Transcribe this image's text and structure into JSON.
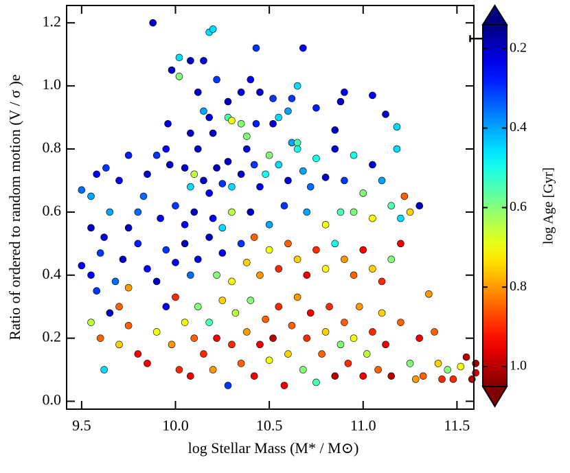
{
  "chart_data": {
    "type": "scatter",
    "xlabel": "log Stellar Mass (M* / M⊙)",
    "ylabel": "Ratio of ordered to random motion (V / σ )e",
    "colorbar_label": "log Age [Gyr]",
    "xlim": [
      9.42,
      11.59
    ],
    "ylim": [
      -0.025,
      1.255
    ],
    "clim": [
      0.14,
      1.05
    ],
    "xticks": [
      9.5,
      {
        "value": 10,
        "label": "10.0"
      },
      10.5,
      {
        "value": 11,
        "label": "11.0"
      },
      11.5
    ],
    "yticks": [
      {
        "value": 0,
        "label": "0.0"
      },
      0.2,
      0.4,
      0.6,
      0.8,
      {
        "value": 1,
        "label": "1.0"
      },
      1.2
    ],
    "cticks": [
      0.2,
      0.4,
      0.6,
      0.8,
      {
        "value": 1,
        "label": "1.0"
      }
    ],
    "colormap": "jet",
    "error_bar": {
      "x": 11.65,
      "y": 1.15,
      "xerr": 0.08,
      "yerr": 0.01
    },
    "x": [
      9.88,
      10.18,
      10.2,
      10.43,
      10.68,
      10.08,
      10.02,
      9.98,
      10.15,
      10.22,
      10.4,
      10.45,
      10.35,
      10.52,
      10.12,
      10.02,
      10.28,
      10.62,
      10.65,
      10.9,
      11.05,
      10.15,
      10.28,
      10.18,
      10.6,
      10.88,
      10.75,
      11.12,
      10.3,
      10.35,
      10.43,
      10.52,
      10.55,
      10.2,
      9.96,
      10.08,
      10.85,
      11.18,
      10.62,
      10.65,
      10.38,
      9.5,
      9.58,
      9.63,
      9.55,
      9.7,
      9.75,
      9.85,
      9.83,
      9.9,
      9.95,
      9.97,
      10.05,
      10.08,
      10.1,
      10.12,
      10.15,
      10.18,
      10.22,
      10.25,
      10.28,
      10.3,
      10.35,
      10.38,
      10.42,
      10.45,
      10.48,
      10.5,
      10.55,
      10.6,
      10.65,
      10.68,
      10.72,
      10.75,
      10.8,
      10.85,
      10.9,
      10.95,
      11.0,
      11.05,
      11.1,
      11.18,
      11.22,
      11.15,
      11.25,
      11.3,
      11.2,
      11.05,
      10.95,
      10.88,
      10.7,
      10.58,
      10.4,
      10.3,
      10.2,
      10.1,
      10.0,
      9.92,
      9.8,
      9.65,
      9.55,
      9.75,
      10.05,
      10.25,
      10.5,
      10.8,
      9.5,
      9.55,
      9.6,
      9.62,
      9.68,
      9.72,
      9.8,
      9.85,
      9.9,
      9.95,
      10.0,
      10.05,
      10.08,
      10.12,
      10.18,
      10.22,
      10.25,
      10.3,
      10.35,
      10.38,
      10.42,
      10.45,
      10.5,
      10.55,
      10.6,
      10.65,
      10.7,
      10.75,
      10.8,
      10.85,
      10.9,
      10.95,
      11.0,
      11.05,
      11.1,
      11.2,
      11.15,
      9.58,
      9.75,
      9.55,
      9.6,
      9.62,
      9.65,
      9.7,
      9.75,
      9.8,
      9.85,
      9.9,
      9.95,
      9.98,
      10.02,
      10.05,
      10.08,
      10.1,
      10.12,
      10.15,
      10.18,
      10.2,
      10.22,
      10.25,
      10.28,
      10.3,
      10.32,
      10.35,
      10.38,
      10.4,
      10.42,
      10.45,
      10.48,
      10.5,
      10.52,
      10.55,
      10.58,
      10.6,
      10.62,
      10.65,
      10.68,
      10.7,
      10.72,
      10.75,
      10.78,
      10.8,
      10.82,
      10.85,
      10.88,
      10.9,
      10.92,
      10.95,
      10.98,
      11.0,
      11.02,
      11.05,
      11.08,
      11.1,
      11.12,
      11.15,
      11.2,
      11.25,
      11.28,
      11.3,
      11.35,
      11.38,
      11.4,
      11.45,
      11.48,
      11.52,
      11.55,
      11.6,
      11.6,
      11.58,
      11.42,
      11.32,
      9.7,
      10.0
    ],
    "values": [
      1.2,
      1.17,
      1.18,
      1.12,
      1.12,
      1.08,
      1.09,
      1.05,
      1.08,
      1.02,
      1.02,
      0.98,
      0.98,
      0.96,
      0.98,
      1.03,
      0.95,
      0.96,
      1.0,
      0.98,
      0.97,
      0.92,
      0.9,
      0.9,
      0.92,
      0.95,
      0.93,
      0.91,
      0.89,
      0.88,
      0.88,
      0.88,
      0.9,
      0.85,
      0.88,
      0.85,
      0.86,
      0.87,
      0.82,
      0.82,
      0.84,
      0.67,
      0.72,
      0.74,
      0.65,
      0.7,
      0.78,
      0.72,
      0.65,
      0.78,
      0.8,
      0.75,
      0.74,
      0.68,
      0.72,
      0.8,
      0.7,
      0.66,
      0.74,
      0.69,
      0.76,
      0.68,
      0.72,
      0.8,
      0.75,
      0.68,
      0.72,
      0.78,
      0.75,
      0.7,
      0.8,
      0.73,
      0.68,
      0.77,
      0.71,
      0.8,
      0.7,
      0.78,
      0.66,
      0.75,
      0.7,
      0.8,
      0.65,
      0.62,
      0.6,
      0.62,
      0.58,
      0.58,
      0.6,
      0.6,
      0.6,
      0.62,
      0.6,
      0.6,
      0.58,
      0.6,
      0.62,
      0.58,
      0.6,
      0.6,
      0.55,
      0.55,
      0.56,
      0.55,
      0.56,
      0.56,
      0.43,
      0.4,
      0.47,
      0.52,
      0.38,
      0.45,
      0.5,
      0.42,
      0.38,
      0.48,
      0.44,
      0.5,
      0.4,
      0.45,
      0.52,
      0.4,
      0.47,
      0.38,
      0.5,
      0.44,
      0.52,
      0.4,
      0.48,
      0.42,
      0.5,
      0.45,
      0.4,
      0.48,
      0.42,
      0.5,
      0.45,
      0.4,
      0.48,
      0.42,
      0.38,
      0.5,
      0.45,
      0.35,
      0.36,
      0.25,
      0.2,
      0.1,
      0.28,
      0.18,
      0.24,
      0.15,
      0.12,
      0.22,
      0.3,
      0.18,
      0.1,
      0.25,
      0.08,
      0.2,
      0.3,
      0.15,
      0.25,
      0.1,
      0.2,
      0.32,
      0.05,
      0.18,
      0.28,
      0.12,
      0.22,
      0.32,
      0.08,
      0.18,
      0.26,
      0.13,
      0.2,
      0.3,
      0.05,
      0.15,
      0.24,
      0.33,
      0.1,
      0.2,
      0.28,
      0.06,
      0.15,
      0.22,
      0.3,
      0.08,
      0.18,
      0.25,
      0.12,
      0.2,
      0.3,
      0.08,
      0.15,
      0.22,
      0.1,
      0.28,
      0.18,
      0.08,
      0.25,
      0.12,
      0.07,
      0.2,
      0.34,
      0.22,
      0.12,
      0.1,
      0.07,
      0.11,
      0.14,
      0.12,
      0.09,
      0.07,
      0.07,
      0.08,
      0.3,
      0.33
    ],
    "color_values": [
      0.2,
      0.45,
      0.45,
      0.3,
      0.25,
      0.2,
      0.45,
      0.2,
      0.22,
      0.3,
      0.25,
      0.2,
      0.22,
      0.3,
      0.2,
      0.6,
      0.2,
      0.3,
      0.45,
      0.25,
      0.25,
      0.4,
      0.55,
      0.22,
      0.4,
      0.2,
      0.28,
      0.2,
      0.7,
      0.6,
      0.28,
      0.22,
      0.45,
      0.2,
      0.22,
      0.2,
      0.2,
      0.45,
      0.4,
      0.55,
      0.6,
      0.35,
      0.25,
      0.3,
      0.4,
      0.25,
      0.28,
      0.2,
      0.35,
      0.3,
      0.25,
      0.2,
      0.2,
      0.45,
      0.65,
      0.2,
      0.2,
      0.25,
      0.2,
      0.3,
      0.2,
      0.45,
      0.2,
      0.22,
      0.3,
      0.22,
      0.5,
      0.6,
      0.45,
      0.22,
      0.5,
      0.4,
      0.35,
      0.5,
      0.2,
      0.22,
      0.3,
      0.5,
      0.6,
      0.22,
      0.4,
      0.45,
      0.85,
      0.55,
      0.75,
      0.2,
      0.45,
      0.7,
      0.6,
      0.55,
      0.4,
      0.3,
      0.2,
      0.65,
      0.25,
      0.2,
      0.3,
      0.25,
      0.35,
      0.4,
      0.2,
      0.2,
      0.25,
      0.45,
      0.4,
      0.7,
      0.25,
      0.25,
      0.3,
      0.22,
      0.35,
      0.2,
      0.28,
      0.25,
      0.2,
      0.3,
      0.25,
      0.2,
      0.35,
      0.22,
      0.2,
      0.6,
      0.25,
      0.7,
      0.3,
      0.75,
      0.85,
      0.8,
      0.7,
      0.9,
      0.85,
      0.75,
      0.95,
      0.9,
      0.7,
      0.5,
      0.8,
      0.85,
      0.95,
      0.75,
      0.9,
      0.95,
      0.6,
      0.3,
      0.8,
      0.65,
      0.85,
      0.45,
      0.2,
      0.75,
      0.85,
      0.95,
      0.95,
      0.7,
      0.25,
      0.8,
      0.9,
      0.7,
      0.95,
      0.85,
      0.6,
      0.9,
      0.55,
      0.8,
      0.95,
      0.75,
      0.3,
      0.9,
      0.65,
      0.85,
      0.8,
      0.6,
      0.95,
      0.95,
      0.85,
      0.7,
      1.0,
      0.9,
      0.95,
      0.75,
      0.85,
      0.8,
      0.6,
      0.9,
      0.95,
      0.55,
      0.85,
      0.75,
      0.9,
      1.0,
      0.6,
      0.85,
      0.9,
      0.7,
      0.8,
      0.95,
      0.65,
      0.9,
      0.85,
      0.75,
      0.95,
      1.0,
      0.85,
      0.6,
      0.8,
      0.95,
      0.8,
      0.85,
      0.75,
      0.6,
      0.9,
      0.7,
      1.0,
      1.02,
      0.98,
      1.0,
      0.9,
      0.85,
      0.85,
      0.9
    ]
  }
}
